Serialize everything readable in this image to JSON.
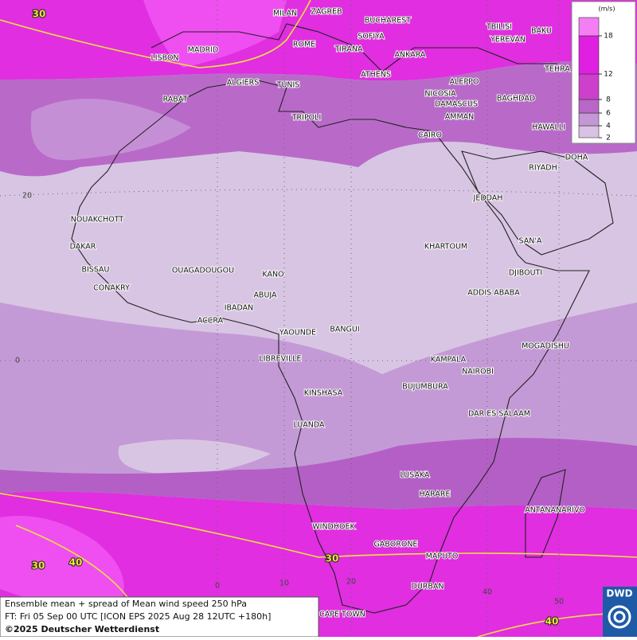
{
  "map": {
    "cities": [
      "MILAN",
      "ZAGREB",
      "BUCHAREST",
      "TBILISI",
      "BAKU",
      "MADRID",
      "ROME",
      "SOFIYA",
      "YEREVAN",
      "LISBON",
      "TIRANA",
      "ANKARA",
      "TEHRA",
      "ALGIERS",
      "TUNIS",
      "ATHENS",
      "ALEPPO",
      "RABAT",
      "NICOSIA",
      "BAGHDAD",
      "DAMASCUS",
      "TRIPOLI",
      "AMMAN",
      "HAWALLI",
      "CAIRO",
      "DOHA",
      "RIYADH",
      "JEDDAH",
      "NOUAKCHOTT",
      "SAN'A",
      "KHARTOUM",
      "DAKAR",
      "BISSAU",
      "OUAGADOUGOU",
      "KANO",
      "DJIBOUTI",
      "CONAKRY",
      "ABUJA",
      "ADDIS ABABA",
      "IBADAN",
      "ACCRA",
      "YAOUNDE",
      "BANGUI",
      "MOGADISHU",
      "LIBREVILLE",
      "KAMPALA",
      "NAIROBI",
      "BUJUMBURA",
      "KINSHASA",
      "DAR ES SALAAM",
      "LUANDA",
      "LUSAKA",
      "HARARE",
      "ANTANANARIVO",
      "WINDHOEK",
      "GABORONE",
      "MAPUTO",
      "DURBAN",
      "CAPE TOWN"
    ],
    "contour_labels": [
      "30",
      "30",
      "40",
      "30",
      "40"
    ],
    "lat_labels": [
      "20",
      "0"
    ],
    "lon_labels": [
      "0",
      "10",
      "20",
      "40",
      "50"
    ],
    "legend": {
      "unit": "(m/s)",
      "levels": [
        2,
        4,
        6,
        8,
        12,
        18
      ],
      "colors": [
        "#d9c3e4",
        "#c497d6",
        "#b866c8",
        "#cc40cc",
        "#e020e0",
        "#f47ef4"
      ]
    }
  },
  "footer": {
    "title": "Ensemble mean + spread of Mean wind speed 250 hPa",
    "forecast": "FT: Fri 05 Sep 00 UTC [ICON EPS 2025 Aug 28 12UTC +180h]",
    "copyright": "©2025 Deutscher Wetterdienst"
  },
  "logo": "DWD"
}
